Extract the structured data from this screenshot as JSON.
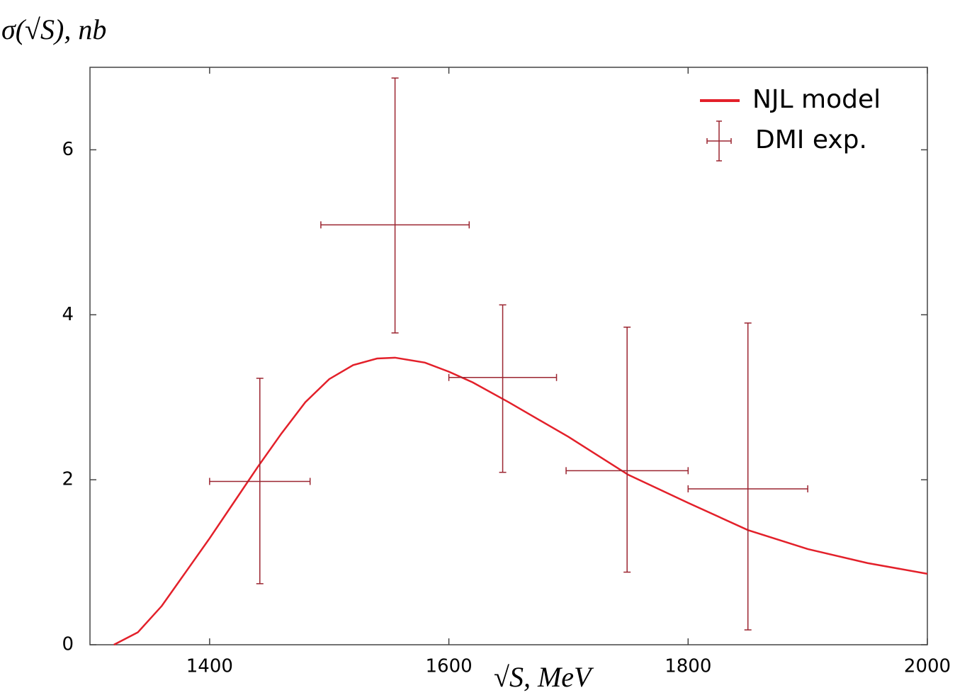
{
  "chart_data": {
    "type": "line",
    "x_label": "√S, MeV",
    "y_label": "σ(√S), nb",
    "xlim": [
      1300,
      2000
    ],
    "xticks": [
      1400,
      1600,
      1800,
      2000
    ],
    "ylim": [
      0,
      7
    ],
    "yticks": [
      0,
      2,
      4,
      6
    ],
    "legend": "upper right",
    "series": [
      {
        "name": "NJL model",
        "type": "line",
        "color": "#e3202a",
        "x": [
          1320,
          1340,
          1360,
          1380,
          1400,
          1420,
          1440,
          1460,
          1480,
          1500,
          1520,
          1540,
          1555,
          1580,
          1600,
          1620,
          1650,
          1700,
          1750,
          1800,
          1850,
          1900,
          1950,
          2000
        ],
        "values": [
          0,
          0.15,
          0.47,
          0.88,
          1.29,
          1.72,
          2.15,
          2.56,
          2.94,
          3.22,
          3.39,
          3.47,
          3.48,
          3.42,
          3.31,
          3.18,
          2.94,
          2.52,
          2.06,
          1.72,
          1.39,
          1.16,
          0.99,
          0.86
        ]
      },
      {
        "name": "DMI exp.",
        "type": "errorbar",
        "color": "#9b2530",
        "x": [
          1442,
          1555,
          1645,
          1749,
          1850
        ],
        "xerr": [
          42,
          62,
          45,
          51,
          50
        ],
        "values": [
          1.98,
          5.09,
          3.24,
          2.11,
          1.89
        ],
        "yerr_minus": [
          1.24,
          1.31,
          1.15,
          1.23,
          1.71
        ],
        "yerr_plus": [
          1.25,
          1.78,
          0.88,
          1.74,
          2.01
        ]
      }
    ]
  }
}
